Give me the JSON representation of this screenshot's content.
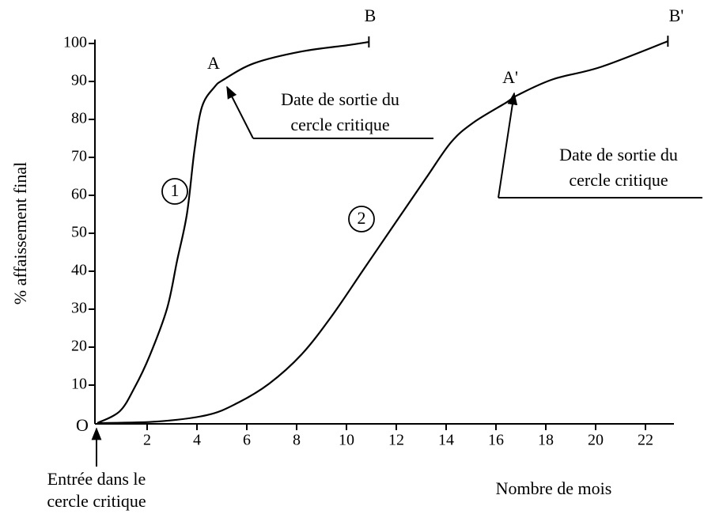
{
  "chart_data": {
    "type": "line",
    "y_label": "% affaissement final",
    "x_label": "Nombre de mois",
    "origin_label": "O",
    "xlim": [
      0,
      23
    ],
    "ylim": [
      0,
      100
    ],
    "xticks": [
      2,
      4,
      6,
      8,
      10,
      12,
      14,
      16,
      18,
      20,
      22
    ],
    "yticks": [
      10,
      20,
      30,
      40,
      50,
      60,
      70,
      80,
      90,
      100
    ],
    "series": [
      {
        "name": "1",
        "color": "#000000",
        "x": [
          0,
          0.9,
          1.5,
          2.1,
          2.8,
          3.2,
          3.6,
          3.9,
          4.2,
          4.7,
          5.1,
          6.3,
          8.2,
          10.1,
          10.9
        ],
        "values": [
          0,
          3.1,
          9.4,
          17.7,
          30.2,
          42.7,
          55.2,
          71.9,
          83.3,
          88.5,
          90.6,
          94.8,
          97.9,
          99.6,
          100.4
        ]
      },
      {
        "name": "2",
        "color": "#000000",
        "x": [
          0,
          2.4,
          4.4,
          5.6,
          6.9,
          8.2,
          9.4,
          10.7,
          12.0,
          13.2,
          14.2,
          15.1,
          16.4,
          16.9,
          18.3,
          20.2,
          22.9
        ],
        "values": [
          0,
          0.4,
          2.1,
          5.2,
          10.4,
          18.1,
          28.1,
          40.6,
          53.1,
          64.6,
          74.0,
          79.2,
          84.4,
          86.5,
          90.6,
          93.8,
          100.6
        ]
      }
    ],
    "annotations": [
      "A",
      "B",
      "A'",
      "B'",
      "Date de sortie du",
      "cercle critique",
      "Date de sortie du",
      "cercle critique",
      "Entrée dans le",
      "cercle critique"
    ]
  }
}
